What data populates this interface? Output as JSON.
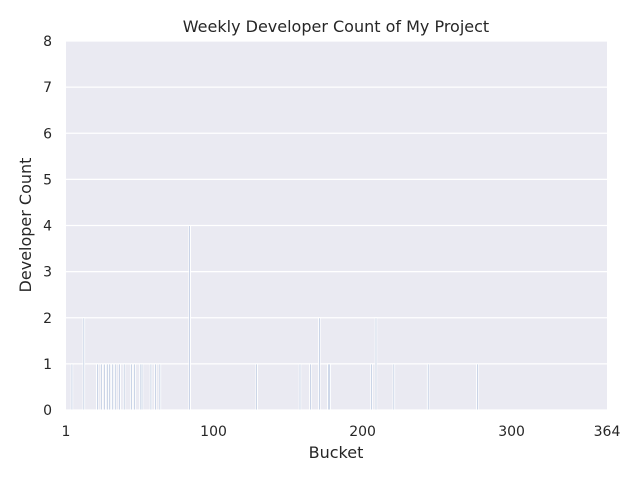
{
  "chart_data": {
    "type": "bar",
    "title": "Weekly Developer Count of My Project",
    "xlabel": "Bucket",
    "ylabel": "Developer Count",
    "xlim": [
      1,
      364
    ],
    "ylim": [
      0,
      8
    ],
    "xticks": [
      1,
      100,
      200,
      300,
      364
    ],
    "yticks": [
      0,
      1,
      2,
      3,
      4,
      5,
      6,
      7,
      8
    ],
    "grid": true,
    "legend": "none",
    "colors": {
      "plot_background": "#eaeaf2",
      "grid": "#ffffff",
      "bar_edge": "#ffffff",
      "bar_fill": "#4c72b0"
    },
    "x": [
      5,
      13,
      22,
      25,
      27,
      29,
      30,
      32,
      34,
      37,
      40,
      45,
      47,
      51,
      52,
      58,
      61,
      64,
      84,
      129,
      158,
      165,
      171,
      177,
      178,
      206,
      209,
      221,
      244,
      277
    ],
    "values": [
      1,
      2,
      1,
      1,
      1,
      1,
      1,
      1,
      1,
      1,
      1,
      1,
      1,
      1,
      1,
      1,
      1,
      1,
      4,
      1,
      1,
      1,
      2,
      1,
      1,
      1,
      2,
      1,
      1,
      1
    ]
  }
}
